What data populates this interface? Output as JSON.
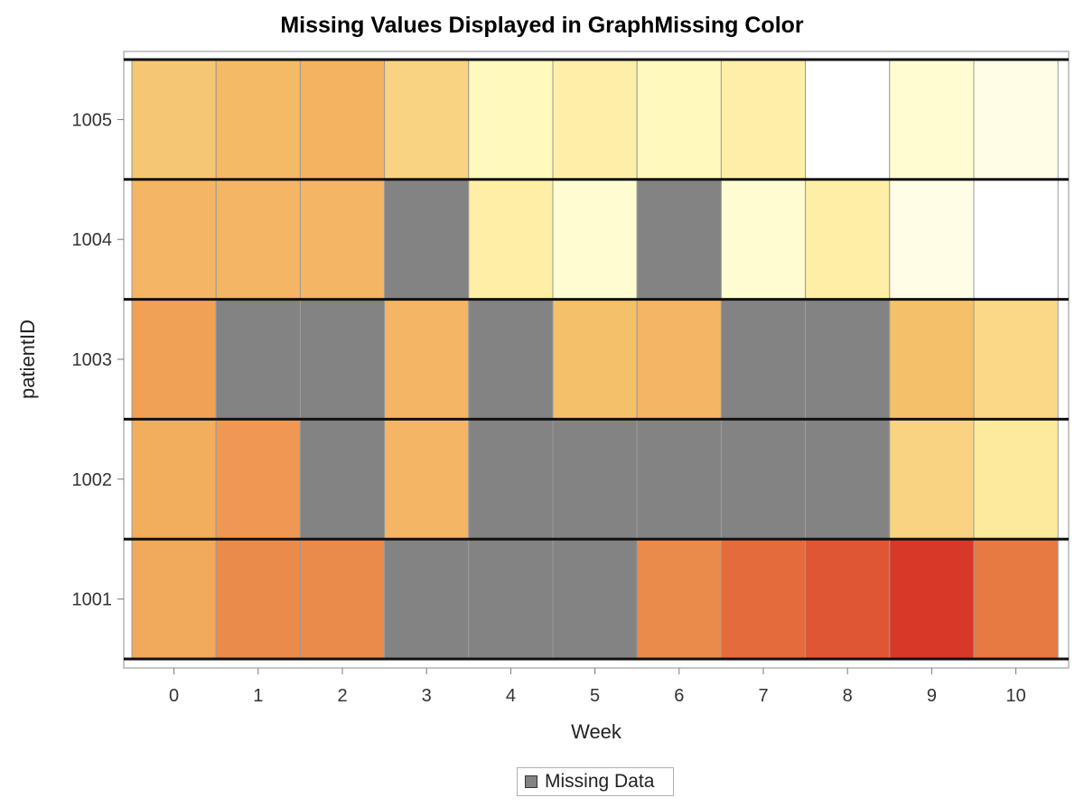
{
  "chart_data": {
    "type": "heatmap",
    "title": "Missing Values Displayed in GraphMissing Color",
    "xlabel": "Week",
    "ylabel": "patientID",
    "x_categories": [
      "0",
      "1",
      "2",
      "3",
      "4",
      "5",
      "6",
      "7",
      "8",
      "9",
      "10"
    ],
    "y_categories": [
      "1001",
      "1002",
      "1003",
      "1004",
      "1005"
    ],
    "missing_color": "#838383",
    "color_ramp": [
      "#ffffff",
      "#fffbc0",
      "#fde89a",
      "#f5c06a",
      "#f0a055",
      "#e67640",
      "#d83828"
    ],
    "value_range": [
      0,
      1
    ],
    "rows": [
      {
        "patientID": "1001",
        "values": [
          0.62,
          0.75,
          0.75,
          null,
          null,
          null,
          0.75,
          0.86,
          0.92,
          1.0,
          0.82
        ]
      },
      {
        "patientID": "1002",
        "values": [
          0.6,
          0.7,
          null,
          0.55,
          null,
          null,
          null,
          null,
          null,
          0.42,
          0.32
        ]
      },
      {
        "patientID": "1003",
        "values": [
          0.66,
          null,
          null,
          0.55,
          null,
          0.5,
          0.55,
          null,
          null,
          0.5,
          0.4
        ]
      },
      {
        "patientID": "1004",
        "values": [
          0.55,
          0.55,
          0.55,
          null,
          0.28,
          0.12,
          null,
          0.12,
          0.28,
          0.07,
          0.0
        ]
      },
      {
        "patientID": "1005",
        "values": [
          0.47,
          0.53,
          0.57,
          0.42,
          0.18,
          0.27,
          0.18,
          0.27,
          0.0,
          0.12,
          0.07
        ]
      }
    ],
    "legend": {
      "label": "Missing Data",
      "placement": "bottom"
    },
    "grid": false
  }
}
